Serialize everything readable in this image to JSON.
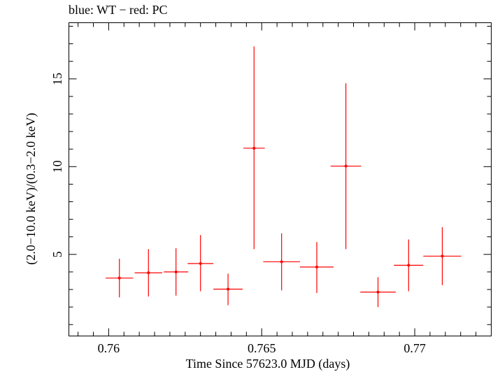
{
  "chart_data": {
    "type": "scatter",
    "title": "blue: WT − red: PC",
    "xlabel": "Time Since 57623.0 MJD (days)",
    "ylabel": "(2.0−10.0 keV)/(0.3−2.0 keV)",
    "xlim": [
      0.7587,
      0.7725
    ],
    "ylim": [
      0.35,
      18.2
    ],
    "x_ticks": [
      0.76,
      0.765,
      0.77
    ],
    "x_tick_labels": [
      "0.76",
      "0.765",
      "0.77"
    ],
    "y_ticks": [
      5,
      10,
      15
    ],
    "y_tick_labels": [
      "5",
      "10",
      "15"
    ],
    "grid": false,
    "series": [
      {
        "color": "#ff0000",
        "points": [
          {
            "x": 0.76035,
            "y": 3.65,
            "xerr": 0.00045,
            "ylo": 2.55,
            "yhi": 4.75
          },
          {
            "x": 0.7613,
            "y": 3.95,
            "xerr": 0.00045,
            "ylo": 2.6,
            "yhi": 5.3
          },
          {
            "x": 0.7622,
            "y": 4.0,
            "xerr": 0.0004,
            "ylo": 2.65,
            "yhi": 5.35
          },
          {
            "x": 0.763,
            "y": 4.48,
            "xerr": 0.00042,
            "ylo": 2.9,
            "yhi": 6.1
          },
          {
            "x": 0.7639,
            "y": 3.02,
            "xerr": 0.00048,
            "ylo": 2.1,
            "yhi": 3.9
          },
          {
            "x": 0.76475,
            "y": 11.05,
            "xerr": 0.00035,
            "ylo": 5.3,
            "yhi": 16.85
          },
          {
            "x": 0.76565,
            "y": 4.58,
            "xerr": 0.0006,
            "ylo": 2.95,
            "yhi": 6.2
          },
          {
            "x": 0.7668,
            "y": 4.28,
            "xerr": 0.00055,
            "ylo": 2.8,
            "yhi": 5.7
          },
          {
            "x": 0.76775,
            "y": 10.03,
            "xerr": 0.0005,
            "ylo": 5.3,
            "yhi": 14.75
          },
          {
            "x": 0.7688,
            "y": 2.85,
            "xerr": 0.00058,
            "ylo": 2.0,
            "yhi": 3.7
          },
          {
            "x": 0.7698,
            "y": 4.38,
            "xerr": 0.00048,
            "ylo": 2.9,
            "yhi": 5.85
          },
          {
            "x": 0.7709,
            "y": 4.9,
            "xerr": 0.00062,
            "ylo": 3.25,
            "yhi": 6.55
          }
        ]
      }
    ]
  }
}
